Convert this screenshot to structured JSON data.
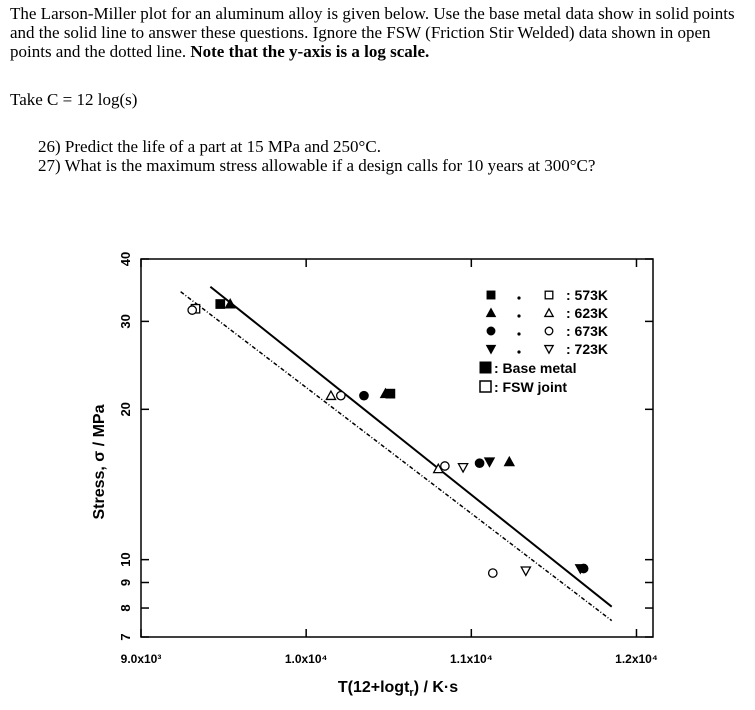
{
  "problem": {
    "intro_1": "The Larson-Miller plot for an aluminum alloy is given below. Use the base metal data show in solid points and the solid line to answer these questions. Ignore the FSW (Friction Stir Welded) data shown in open points and the dotted line. ",
    "intro_bold": "Note that the y-axis is a log scale.",
    "take_c": "Take C = 12 log(s)",
    "q26": "26) Predict the life of a part at 15 MPa and 250°C.",
    "q27": "27) What is the maximum stress allowable if a design calls for 10 years at 300°C?"
  },
  "chart_data": {
    "type": "scatter",
    "xlabel": "T(12+logt_r) / K·s",
    "ylabel": "Stress, σ / MPa",
    "xlim": [
      9000,
      12100
    ],
    "ylim": [
      7,
      40
    ],
    "y_scale": "log",
    "x_ticks": [
      {
        "value": 9000,
        "label": "9.0x10³"
      },
      {
        "value": 10000,
        "label": "1.0x10⁴"
      },
      {
        "value": 11000,
        "label": "1.1x10⁴"
      },
      {
        "value": 12000,
        "label": "1.2x10⁴"
      }
    ],
    "y_ticks": [
      {
        "value": 40,
        "label": "40"
      },
      {
        "value": 30,
        "label": "30"
      },
      {
        "value": 20,
        "label": "20"
      },
      {
        "value": 10,
        "label": "10"
      },
      {
        "value": 9,
        "label": "9"
      },
      {
        "value": 8,
        "label": "8"
      },
      {
        "value": 7,
        "label": "7"
      }
    ],
    "legend": {
      "placement": "top-right",
      "temps": [
        "573K",
        "623K",
        "673K",
        "723K"
      ],
      "base_label": "Base metal",
      "fsw_label": "FSW joint"
    },
    "series": [
      {
        "kind": "base",
        "temp": "573K",
        "marker": "square",
        "filled": true,
        "points": [
          [
            9480,
            32.5
          ],
          [
            10510,
            21.5
          ]
        ]
      },
      {
        "kind": "base",
        "temp": "623K",
        "marker": "triangle-up",
        "filled": true,
        "points": [
          [
            9540,
            32.5
          ],
          [
            10480,
            21.5
          ],
          [
            11230,
            15.7
          ]
        ]
      },
      {
        "kind": "base",
        "temp": "673K",
        "marker": "circle",
        "filled": true,
        "points": [
          [
            10350,
            21.3
          ],
          [
            11050,
            15.6
          ],
          [
            11680,
            9.6
          ]
        ]
      },
      {
        "kind": "base",
        "temp": "723K",
        "marker": "triangle-down",
        "filled": true,
        "points": [
          [
            11110,
            15.7
          ],
          [
            11660,
            9.6
          ]
        ]
      },
      {
        "kind": "fsw",
        "temp": "573K",
        "marker": "square",
        "filled": false,
        "points": [
          [
            9330,
            31.8
          ]
        ]
      },
      {
        "kind": "fsw",
        "temp": "623K",
        "marker": "triangle-up",
        "filled": false,
        "points": [
          [
            10150,
            21.3
          ],
          [
            10800,
            15.2
          ]
        ]
      },
      {
        "kind": "fsw",
        "temp": "673K",
        "marker": "circle",
        "filled": false,
        "points": [
          [
            9310,
            31.6
          ],
          [
            10210,
            21.3
          ],
          [
            10840,
            15.4
          ],
          [
            11130,
            9.4
          ]
        ]
      },
      {
        "kind": "fsw",
        "temp": "723K",
        "marker": "triangle-down",
        "filled": false,
        "points": [
          [
            10950,
            15.3
          ],
          [
            11330,
            9.5
          ]
        ]
      }
    ],
    "lines": [
      {
        "kind": "base",
        "style": "solid",
        "points": [
          [
            9420,
            35.2
          ],
          [
            11850,
            8.05
          ]
        ]
      },
      {
        "kind": "fsw",
        "style": "dotted",
        "points": [
          [
            9240,
            34.4
          ],
          [
            11850,
            7.55
          ]
        ]
      }
    ]
  }
}
